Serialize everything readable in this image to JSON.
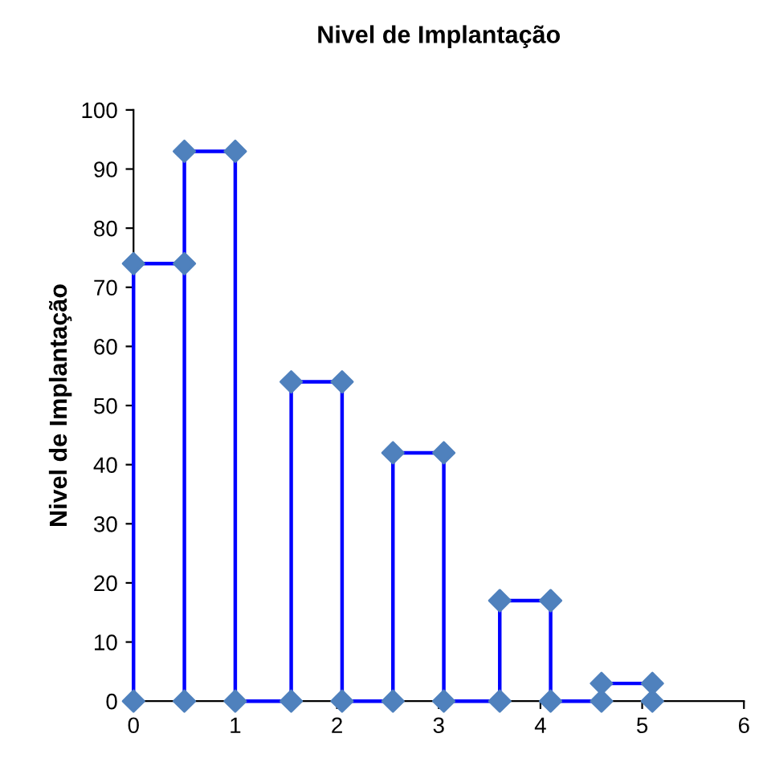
{
  "chart_data": {
    "type": "line",
    "title": "Nivel de Implantação",
    "ylabel": "Nivel de Implantação",
    "series": [
      {
        "color": "#0000ff",
        "colors": [
          "#4f81bd",
          "#4f81bd",
          "#4f81bd",
          "#4f81bd",
          "#4f81bd",
          "#4f81bd",
          "#4f81bd",
          "#4f81bd",
          "#4f81bd",
          "#4f81bd",
          "#4f81bd",
          "#4f81bd",
          "#4f81bd",
          "#4f81bd",
          "#4f81bd",
          "#4f81bd",
          "#4f81bd",
          "#4f81bd",
          "#4f81bd",
          "#4f81bd",
          "#4f81bd",
          "#4f81bd",
          "#4f81bd"
        ],
        "x": [
          0,
          0,
          0.5,
          0.5,
          0.5,
          1,
          1,
          1.55,
          1.55,
          2.05,
          2.05,
          2.55,
          2.55,
          3.05,
          3.05,
          3.6,
          3.6,
          4.1,
          4.1,
          4.6,
          4.6,
          5.1,
          5.1
        ],
        "values": [
          0,
          74,
          74,
          0,
          93,
          93,
          0,
          0,
          54,
          54,
          0,
          0,
          42,
          42,
          0,
          0,
          17,
          17,
          0,
          0,
          3,
          3,
          0
        ]
      }
    ],
    "xlim": [
      0,
      6
    ],
    "xticks": [
      0,
      1,
      2,
      3,
      4,
      5,
      6
    ],
    "ylim": [
      0,
      100
    ],
    "yticks": [
      0,
      10,
      20,
      30,
      40,
      50,
      60,
      70,
      80,
      90,
      100
    ],
    "marker": "diamond",
    "line_style": "solid",
    "grid": false,
    "legend": false
  }
}
